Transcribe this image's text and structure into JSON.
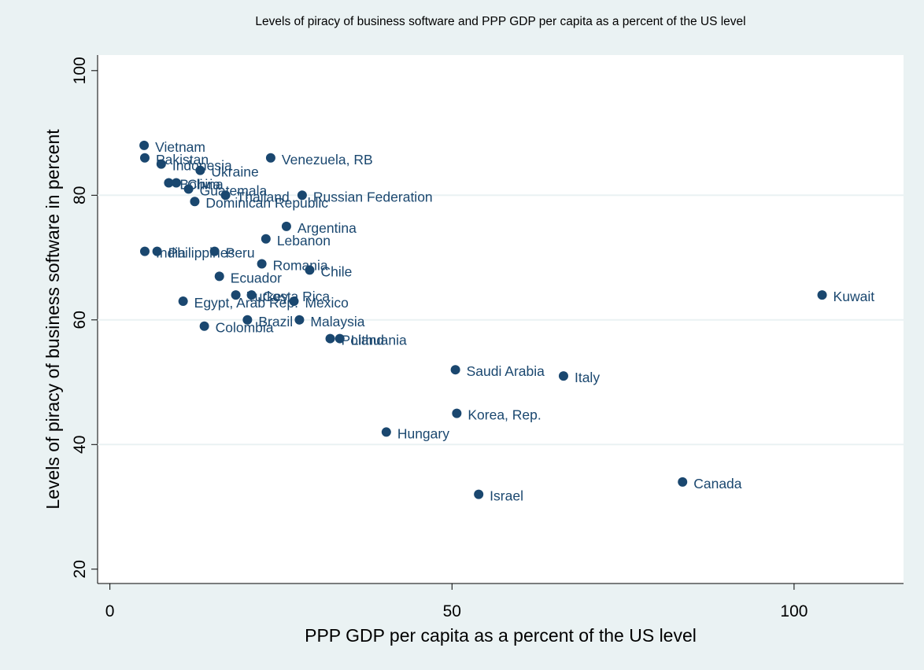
{
  "chart_data": {
    "type": "scatter",
    "title": "Levels of piracy of business software and PPP GDP per capita as a percent of the US level",
    "x_label": "PPP GDP per capita as a percent of the US level",
    "y_label": "Levels of piracy of business software in percent",
    "color": "#1a476f",
    "grid": true,
    "xlim": [
      -1.8,
      116
    ],
    "ylim": [
      17.7,
      102.5
    ],
    "xticks": [
      0,
      50,
      100
    ],
    "yticks": [
      20,
      40,
      60,
      80,
      100
    ],
    "labels": [
      "Vietnam",
      "Pakistan",
      "Indonesia",
      "Ukraine",
      "Venezuela, RB",
      "Bolivia",
      "China",
      "Guatemala",
      "Thailand",
      "Russian Federation",
      "Dominican Republic",
      "Argentina",
      "Lebanon",
      "India",
      "Philippines",
      "Peru",
      "Romania",
      "Chile",
      "Ecuador",
      "Egypt, Arab Rep.",
      "Turkey",
      "Costa Rica",
      "Mexico",
      "Colombia",
      "Brazil",
      "Malaysia",
      "Poland",
      "Lithuania",
      "Saudi Arabia",
      "Italy",
      "Korea, Rep.",
      "Hungary",
      "Israel",
      "Canada",
      "Kuwait"
    ],
    "x": [
      5.0,
      5.1,
      7.5,
      13.2,
      23.5,
      8.6,
      9.7,
      11.5,
      16.9,
      28.1,
      12.4,
      25.8,
      22.8,
      5.1,
      6.9,
      15.3,
      22.2,
      29.2,
      16.0,
      10.7,
      18.4,
      20.7,
      26.9,
      13.8,
      20.1,
      27.7,
      32.2,
      33.6,
      50.5,
      66.3,
      50.7,
      40.4,
      53.9,
      83.7,
      104.1
    ],
    "values": [
      88,
      86,
      85,
      84,
      86,
      82,
      82,
      81,
      80,
      80,
      79,
      75,
      73,
      71,
      71,
      71,
      69,
      68,
      67,
      63,
      64,
      64,
      63,
      59,
      60,
      60,
      57,
      57,
      52,
      51,
      45,
      42,
      32,
      34,
      64
    ]
  }
}
